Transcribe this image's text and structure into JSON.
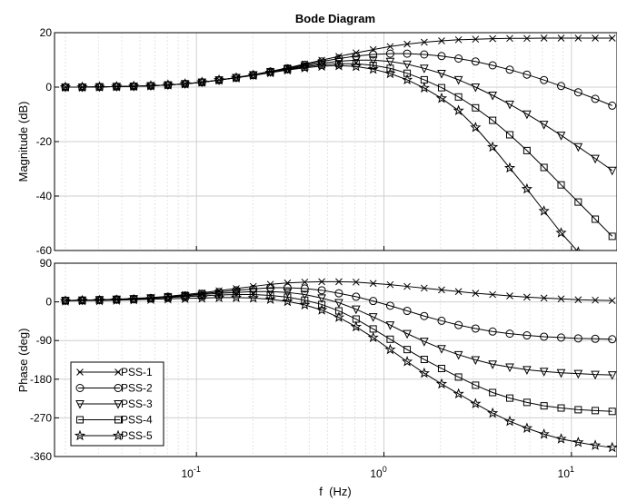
{
  "chart_data": [
    {
      "type": "line",
      "title": "Bode Diagram",
      "ylabel": "Magnitude (dB)",
      "xlabel": "",
      "xscale": "log",
      "xlim": [
        0.0175,
        17.5
      ],
      "ylim": [
        -60,
        20
      ],
      "yticks": [
        "20",
        "0",
        "-20",
        "-40",
        "-60"
      ],
      "grid": true,
      "marker_x": [
        0.02,
        0.0246,
        0.0304,
        0.0375,
        0.0463,
        0.0571,
        0.0705,
        0.087,
        0.107,
        0.132,
        0.163,
        0.201,
        0.248,
        0.306,
        0.378,
        0.466,
        0.575,
        0.71,
        0.876,
        1.08,
        1.33,
        1.64,
        2.03,
        2.5,
        3.08,
        3.8,
        4.69,
        5.79,
        7.14,
        8.81,
        10.87,
        13.4,
        16.5
      ],
      "series": [
        {
          "name": "PSS-1",
          "marker": "x",
          "x": [
            0.02,
            0.0246,
            0.0304,
            0.0375,
            0.0463,
            0.0571,
            0.0705,
            0.087,
            0.107,
            0.132,
            0.163,
            0.201,
            0.248,
            0.306,
            0.378,
            0.466,
            0.575,
            0.71,
            0.876,
            1.08,
            1.33,
            1.64,
            2.03,
            2.5,
            3.08,
            3.8,
            4.69,
            5.79,
            7.14,
            8.81,
            10.87,
            13.4,
            16.5
          ],
          "values": [
            0,
            0,
            0.1,
            0.2,
            0.3,
            0.5,
            0.8,
            1.2,
            1.8,
            2.6,
            3.5,
            4.6,
            5.8,
            7.1,
            8.5,
            9.9,
            11.3,
            12.6,
            13.8,
            14.9,
            15.8,
            16.5,
            17.0,
            17.4,
            17.6,
            17.8,
            17.9,
            17.9,
            18.0,
            18.0,
            18.0,
            18.0,
            18.0
          ]
        },
        {
          "name": "PSS-2",
          "marker": "o",
          "x": [
            0.02,
            0.0246,
            0.0304,
            0.0375,
            0.0463,
            0.0571,
            0.0705,
            0.087,
            0.107,
            0.132,
            0.163,
            0.201,
            0.248,
            0.306,
            0.378,
            0.466,
            0.575,
            0.71,
            0.876,
            1.08,
            1.33,
            1.64,
            2.03,
            2.5,
            3.08,
            3.8,
            4.69,
            5.79,
            7.14,
            8.81,
            10.87,
            13.4,
            16.5
          ],
          "values": [
            0,
            0,
            0.1,
            0.2,
            0.3,
            0.5,
            0.8,
            1.2,
            1.8,
            2.6,
            3.5,
            4.5,
            5.7,
            6.9,
            8.2,
            9.4,
            10.5,
            11.4,
            12.0,
            12.3,
            12.3,
            12.0,
            11.4,
            10.5,
            9.4,
            8.0,
            6.4,
            4.6,
            2.6,
            0.4,
            -1.9,
            -4.3,
            -6.8
          ]
        },
        {
          "name": "PSS-3",
          "marker": "v",
          "x": [
            0.02,
            0.0246,
            0.0304,
            0.0375,
            0.0463,
            0.0571,
            0.0705,
            0.087,
            0.107,
            0.132,
            0.163,
            0.201,
            0.248,
            0.306,
            0.378,
            0.466,
            0.575,
            0.71,
            0.876,
            1.08,
            1.33,
            1.64,
            2.03,
            2.5,
            3.08,
            3.8,
            4.69,
            5.79,
            7.14,
            8.81,
            10.87,
            13.4,
            16.5
          ],
          "values": [
            0,
            0,
            0.1,
            0.2,
            0.3,
            0.5,
            0.8,
            1.2,
            1.8,
            2.6,
            3.5,
            4.5,
            5.6,
            6.7,
            7.8,
            8.8,
            9.5,
            9.9,
            9.9,
            9.4,
            8.4,
            6.9,
            5.0,
            2.7,
            0.0,
            -3.0,
            -6.3,
            -9.9,
            -13.7,
            -17.7,
            -21.9,
            -26.2,
            -30.6
          ]
        },
        {
          "name": "PSS-4",
          "marker": "s",
          "x": [
            0.02,
            0.0246,
            0.0304,
            0.0375,
            0.0463,
            0.0571,
            0.0705,
            0.087,
            0.107,
            0.132,
            0.163,
            0.201,
            0.248,
            0.306,
            0.378,
            0.466,
            0.575,
            0.71,
            0.876,
            1.08,
            1.33,
            1.64,
            2.03,
            2.5,
            3.08,
            3.8,
            4.69,
            5.79,
            7.14,
            8.81,
            10.87,
            13.4,
            16.5
          ],
          "values": [
            0,
            0,
            0.1,
            0.2,
            0.3,
            0.5,
            0.8,
            1.2,
            1.8,
            2.6,
            3.5,
            4.4,
            5.5,
            6.5,
            7.4,
            8.2,
            8.6,
            8.6,
            8.0,
            6.9,
            5.1,
            2.7,
            -0.2,
            -3.6,
            -7.6,
            -12.2,
            -17.5,
            -23.3,
            -29.5,
            -35.9,
            -42.2,
            -48.5,
            -54.8
          ]
        },
        {
          "name": "PSS-5",
          "marker": "*",
          "x": [
            0.02,
            0.0246,
            0.0304,
            0.0375,
            0.0463,
            0.0571,
            0.0705,
            0.087,
            0.107,
            0.132,
            0.163,
            0.201,
            0.248,
            0.306,
            0.378,
            0.466,
            0.575,
            0.71,
            0.876,
            1.08,
            1.33,
            1.64,
            2.03,
            2.5,
            3.08,
            3.8,
            4.69,
            5.79,
            7.14,
            8.81,
            10.87,
            13.4
          ],
          "values": [
            0,
            0,
            0.1,
            0.2,
            0.3,
            0.5,
            0.8,
            1.2,
            1.8,
            2.6,
            3.4,
            4.3,
            5.3,
            6.3,
            7.1,
            7.7,
            7.9,
            7.6,
            6.6,
            5.0,
            2.7,
            -0.3,
            -4.1,
            -8.6,
            -14.8,
            -22.0,
            -29.7,
            -37.4,
            -45.5,
            -53.5,
            -60.5,
            -66.0
          ]
        }
      ]
    },
    {
      "type": "line",
      "title": "",
      "ylabel": "Phase (deg)",
      "xlabel": "f  (Hz)",
      "xscale": "log",
      "xlim": [
        0.0175,
        17.5
      ],
      "ylim": [
        -360,
        90
      ],
      "yticks": [
        "90",
        "0",
        "-90",
        "-180",
        "-270",
        "-360"
      ],
      "xticks": [
        {
          "value": 0.1,
          "base": "10",
          "exp": "-1"
        },
        {
          "value": 1,
          "base": "10",
          "exp": "0"
        },
        {
          "value": 10,
          "base": "10",
          "exp": "1"
        }
      ],
      "grid": true,
      "legend": "bottom-left",
      "series": [
        {
          "name": "PSS-1",
          "marker": "x",
          "x": [
            0.02,
            0.0246,
            0.0304,
            0.0375,
            0.0463,
            0.0571,
            0.0705,
            0.087,
            0.107,
            0.132,
            0.163,
            0.201,
            0.248,
            0.306,
            0.378,
            0.466,
            0.575,
            0.71,
            0.876,
            1.08,
            1.33,
            1.64,
            2.03,
            2.5,
            3.08,
            3.8,
            4.69,
            5.79,
            7.14,
            8.81,
            10.87,
            13.4,
            16.5
          ],
          "values": [
            3,
            4,
            5,
            6,
            8,
            10,
            13,
            17,
            21,
            26,
            31,
            36,
            41,
            44,
            46,
            47,
            47,
            46,
            43,
            40,
            36,
            32,
            28,
            24,
            20,
            17,
            14,
            11,
            9,
            7,
            5,
            4,
            3
          ]
        },
        {
          "name": "PSS-2",
          "marker": "o",
          "x": [
            0.02,
            0.0246,
            0.0304,
            0.0375,
            0.0463,
            0.0571,
            0.0705,
            0.087,
            0.107,
            0.132,
            0.163,
            0.201,
            0.248,
            0.306,
            0.378,
            0.466,
            0.575,
            0.71,
            0.876,
            1.08,
            1.33,
            1.64,
            2.03,
            2.5,
            3.08,
            3.8,
            4.69,
            5.79,
            7.14,
            8.81,
            10.87,
            13.4,
            16.5
          ],
          "values": [
            3,
            4,
            5,
            6,
            7,
            9,
            12,
            15,
            19,
            23,
            27,
            30,
            33,
            33,
            31,
            27,
            20,
            12,
            2,
            -9,
            -21,
            -33,
            -44,
            -54,
            -62,
            -69,
            -74,
            -78,
            -81,
            -83,
            -85,
            -86,
            -87
          ]
        },
        {
          "name": "PSS-3",
          "marker": "v",
          "x": [
            0.02,
            0.0246,
            0.0304,
            0.0375,
            0.0463,
            0.0571,
            0.0705,
            0.087,
            0.107,
            0.132,
            0.163,
            0.201,
            0.248,
            0.306,
            0.378,
            0.466,
            0.575,
            0.71,
            0.876,
            1.08,
            1.33,
            1.64,
            2.03,
            2.5,
            3.08,
            3.8,
            4.69,
            5.79,
            7.14,
            8.81,
            10.87,
            13.4,
            16.5
          ],
          "values": [
            3,
            4,
            5,
            6,
            7,
            9,
            11,
            14,
            17,
            20,
            22,
            24,
            24,
            22,
            17,
            9,
            -2,
            -17,
            -35,
            -54,
            -74,
            -92,
            -109,
            -123,
            -135,
            -145,
            -152,
            -158,
            -162,
            -165,
            -167,
            -169,
            -170
          ]
        },
        {
          "name": "PSS-4",
          "marker": "s",
          "x": [
            0.02,
            0.0246,
            0.0304,
            0.0375,
            0.0463,
            0.0571,
            0.0705,
            0.087,
            0.107,
            0.132,
            0.163,
            0.201,
            0.248,
            0.306,
            0.378,
            0.466,
            0.575,
            0.71,
            0.876,
            1.08,
            1.33,
            1.64,
            2.03,
            2.5,
            3.08,
            3.8,
            4.69,
            5.79,
            7.14,
            8.81,
            10.87,
            13.4,
            16.5
          ],
          "values": [
            3,
            3,
            4,
            5,
            6,
            8,
            10,
            12,
            14,
            16,
            17,
            17,
            15,
            11,
            4,
            -6,
            -21,
            -40,
            -63,
            -87,
            -111,
            -134,
            -155,
            -175,
            -194,
            -211,
            -224,
            -234,
            -242,
            -247,
            -251,
            -253,
            -255
          ]
        },
        {
          "name": "PSS-5",
          "marker": "*",
          "x": [
            0.02,
            0.0246,
            0.0304,
            0.0375,
            0.0463,
            0.0571,
            0.0705,
            0.087,
            0.107,
            0.132,
            0.163,
            0.201,
            0.248,
            0.306,
            0.378,
            0.466,
            0.575,
            0.71,
            0.876,
            1.08,
            1.33,
            1.64,
            2.03,
            2.5,
            3.08,
            3.8,
            4.69,
            5.79,
            7.14,
            8.81,
            10.87,
            13.4,
            16.5
          ],
          "values": [
            2,
            3,
            3,
            4,
            5,
            6,
            7,
            8,
            9,
            10,
            10,
            9,
            6,
            1,
            -7,
            -19,
            -36,
            -58,
            -83,
            -111,
            -139,
            -166,
            -191,
            -214,
            -237,
            -259,
            -278,
            -294,
            -308,
            -319,
            -327,
            -334,
            -339
          ]
        }
      ]
    }
  ]
}
